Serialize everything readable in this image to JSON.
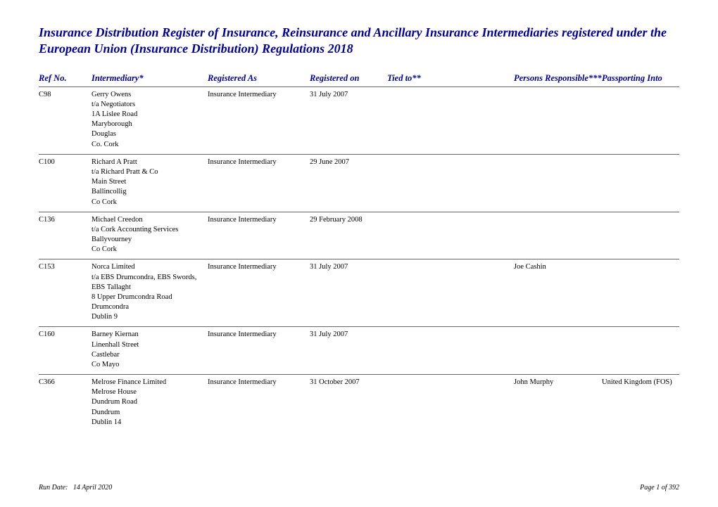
{
  "title": "Insurance Distribution Register of Insurance, Reinsurance and Ancillary Insurance Intermediaries registered under the European Union (Insurance Distribution) Regulations 2018",
  "colors": {
    "heading": "#000099",
    "text": "#000000",
    "rule": "#666666",
    "background": "#ffffff"
  },
  "columns": {
    "ref": "Ref No.",
    "intermediary": "Intermediary*",
    "registeredAs": "Registered As",
    "registeredOn": "Registered on",
    "tiedTo": "Tied to**",
    "persons": "Persons Responsible***",
    "passporting": "Passporting Into"
  },
  "rows": [
    {
      "ref": "C98",
      "intermediary": [
        "Gerry Owens",
        "t/a Negotiators",
        "1A Lislee Road",
        "Maryborough",
        "Douglas",
        "Co. Cork"
      ],
      "registeredAs": "Insurance Intermediary",
      "registeredOn": "31 July 2007",
      "tiedTo": "",
      "persons": "",
      "passporting": ""
    },
    {
      "ref": "C100",
      "intermediary": [
        "Richard A Pratt",
        "t/a Richard Pratt & Co",
        "Main Street",
        "Ballincollig",
        "Co Cork"
      ],
      "registeredAs": "Insurance Intermediary",
      "registeredOn": "29 June 2007",
      "tiedTo": "",
      "persons": "",
      "passporting": ""
    },
    {
      "ref": "C136",
      "intermediary": [
        "Michael Creedon",
        "t/a Cork Accounting Services",
        "Ballyvourney",
        "Co Cork"
      ],
      "registeredAs": "Insurance Intermediary",
      "registeredOn": "29 February 2008",
      "tiedTo": "",
      "persons": "",
      "passporting": ""
    },
    {
      "ref": "C153",
      "intermediary": [
        "Norca Limited",
        "t/a EBS Drumcondra, EBS Swords, EBS Tallaght",
        "8 Upper Drumcondra Road",
        "Drumcondra",
        "Dublin 9"
      ],
      "registeredAs": "Insurance Intermediary",
      "registeredOn": "31 July 2007",
      "tiedTo": "",
      "persons": "Joe Cashin",
      "passporting": ""
    },
    {
      "ref": "C160",
      "intermediary": [
        "Barney Kiernan",
        "Linenhall Street",
        "Castlebar",
        "Co Mayo"
      ],
      "registeredAs": "Insurance Intermediary",
      "registeredOn": "31 July 2007",
      "tiedTo": "",
      "persons": "",
      "passporting": ""
    },
    {
      "ref": "C366",
      "intermediary": [
        "Melrose Finance Limited",
        "Melrose House",
        "Dundrum Road",
        "Dundrum",
        "Dublin 14"
      ],
      "registeredAs": "Insurance Intermediary",
      "registeredOn": "31 October 2007",
      "tiedTo": "",
      "persons": "John Murphy",
      "passporting": "United Kingdom (FOS)"
    }
  ],
  "footer": {
    "runLabel": "Run Date:",
    "runDate": "14 April 2020",
    "pageLabel": "Page",
    "pageCurrent": "1",
    "pageOf": "of",
    "pageTotal": "392"
  }
}
